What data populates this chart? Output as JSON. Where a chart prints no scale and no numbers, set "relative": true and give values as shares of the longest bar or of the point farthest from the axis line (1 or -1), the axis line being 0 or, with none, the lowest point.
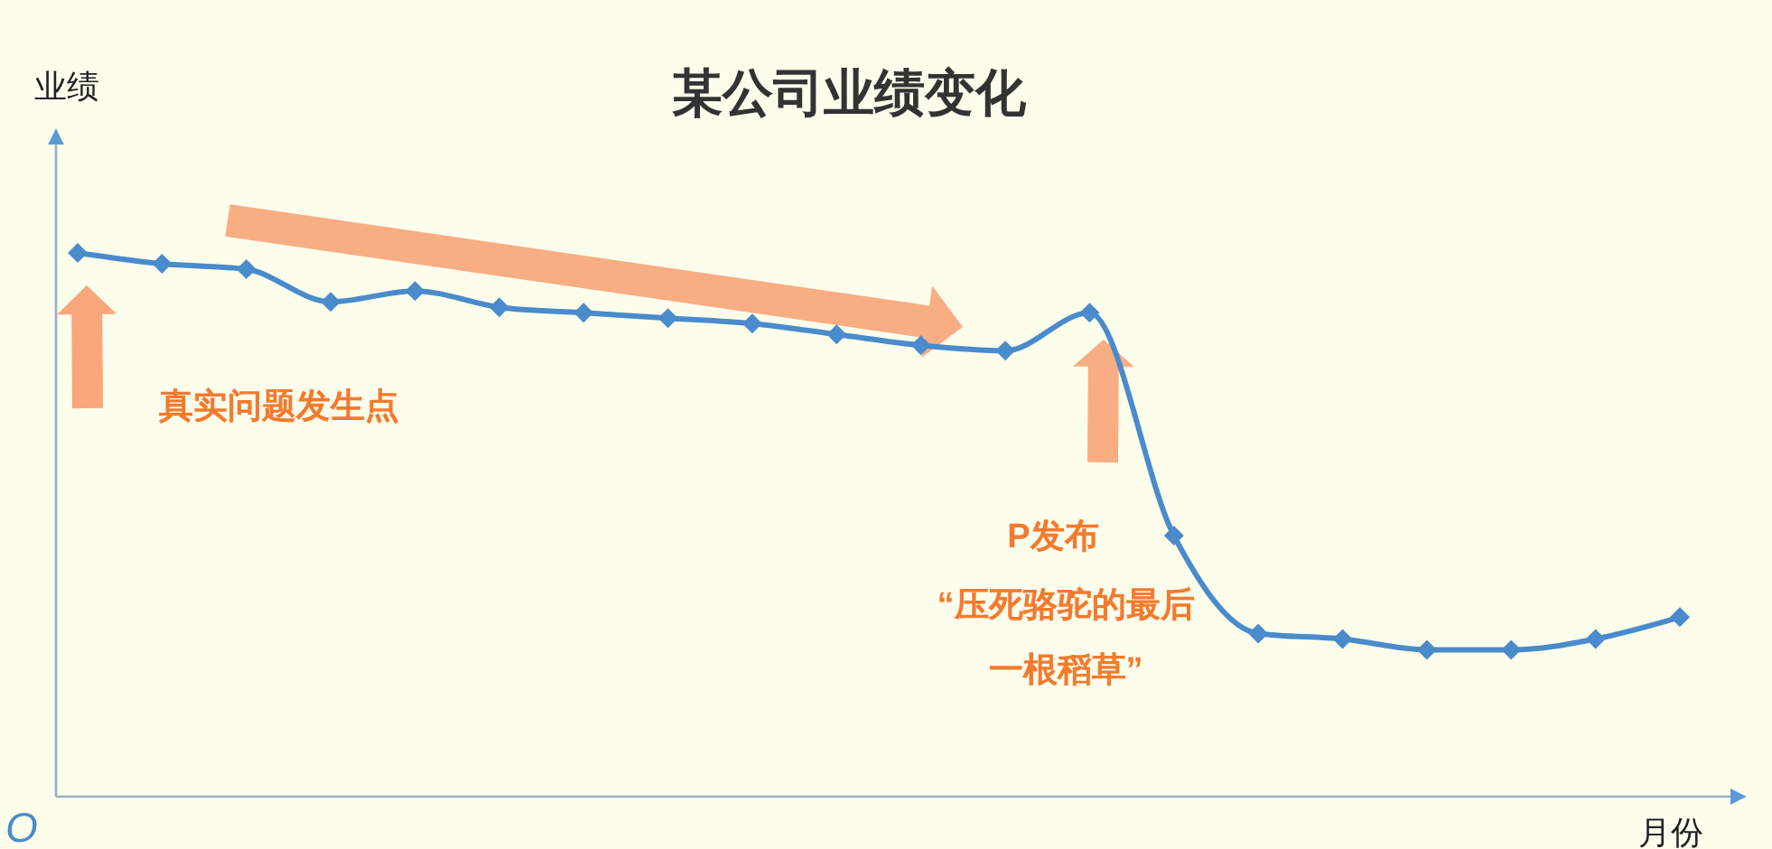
{
  "chart_data": {
    "type": "line",
    "title": "某公司业绩变化",
    "xlabel": "月份",
    "ylabel": "业绩",
    "relative": true,
    "categories": [
      null,
      null,
      null,
      null,
      null,
      null,
      null,
      null,
      null,
      null,
      null,
      null,
      null,
      null,
      null,
      null,
      null,
      null,
      null,
      null
    ],
    "series": [
      {
        "color": "#4a8bcb",
        "values": [
          1,
          0.98,
          0.97,
          0.91,
          0.93,
          0.9,
          0.89,
          0.88,
          0.87,
          0.85,
          0.83,
          0.82,
          0.89,
          0.48,
          0.3,
          0.29,
          0.27,
          0.27,
          0.29,
          0.33
        ]
      }
    ],
    "marker": "diamond",
    "line_style": "solid",
    "annotations": [
      "真实问题发生点",
      "P发布",
      "“压死骆驼的最后一根稻草”",
      "O"
    ]
  }
}
